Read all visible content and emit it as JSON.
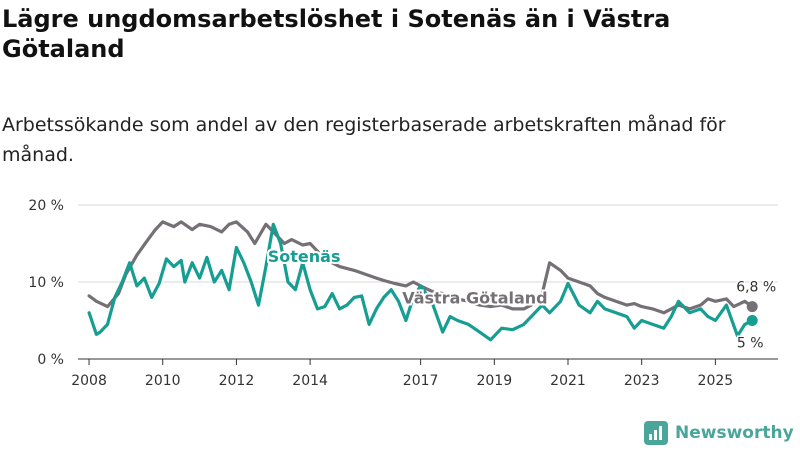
{
  "title": "Lägre ungdomsarbetslöshet i Sotenäs än i Västra Götaland",
  "subtitle": "Arbetssökande som andel av den registerbaserade arbetskraften månad för månad.",
  "brand": {
    "name": "Newsworthy",
    "icon": "newsworthy-logo-icon"
  },
  "colors": {
    "sotenas": "#179e93",
    "vastra": "#747075",
    "grid": "#d9d9d9",
    "axis": "#333333"
  },
  "chart_data": {
    "type": "line",
    "title": "Lägre ungdomsarbetslöshet i Sotenäs än i Västra Götaland",
    "xlabel": "",
    "ylabel": "",
    "xlim": [
      2007.7,
      2026.7
    ],
    "ylim": [
      0,
      20
    ],
    "y_ticks": [
      {
        "value": 0,
        "label": "0 %"
      },
      {
        "value": 10,
        "label": "10 %"
      },
      {
        "value": 20,
        "label": "20 %"
      }
    ],
    "x_ticks": [
      {
        "value": 2008,
        "label": "2008"
      },
      {
        "value": 2010,
        "label": "2010"
      },
      {
        "value": 2012,
        "label": "2012"
      },
      {
        "value": 2014,
        "label": "2014"
      },
      {
        "value": 2017,
        "label": "2017"
      },
      {
        "value": 2019,
        "label": "2019"
      },
      {
        "value": 2021,
        "label": "2021"
      },
      {
        "value": 2023,
        "label": "2023"
      },
      {
        "value": 2025,
        "label": "2025"
      }
    ],
    "grid": "horizontal",
    "series": [
      {
        "name": "Västra Götaland",
        "color": "#747075",
        "end_label": "6,8 %",
        "x": [
          2008.0,
          2008.2,
          2008.5,
          2008.8,
          2009.0,
          2009.3,
          2009.6,
          2009.8,
          2010.0,
          2010.3,
          2010.5,
          2010.8,
          2011.0,
          2011.3,
          2011.6,
          2011.8,
          2012.0,
          2012.3,
          2012.5,
          2012.8,
          2013.0,
          2013.3,
          2013.5,
          2013.8,
          2014.0,
          2014.3,
          2014.6,
          2014.8,
          2015.2,
          2015.5,
          2015.8,
          2016.0,
          2016.3,
          2016.6,
          2016.8,
          2017.0,
          2017.3,
          2017.6,
          2017.8,
          2018.0,
          2018.3,
          2018.6,
          2018.9,
          2019.2,
          2019.5,
          2019.8,
          2020.0,
          2020.3,
          2020.5,
          2020.8,
          2021.0,
          2021.3,
          2021.6,
          2021.8,
          2022.0,
          2022.3,
          2022.6,
          2022.8,
          2023.0,
          2023.3,
          2023.6,
          2023.8,
          2024.0,
          2024.3,
          2024.6,
          2024.8,
          2025.0,
          2025.3,
          2025.5,
          2025.8,
          2026.0
        ],
        "values": [
          8.2,
          7.5,
          6.8,
          8.5,
          11.0,
          13.5,
          15.5,
          16.8,
          17.8,
          17.2,
          17.8,
          16.8,
          17.5,
          17.2,
          16.5,
          17.5,
          17.8,
          16.5,
          15.0,
          17.5,
          16.5,
          15.0,
          15.5,
          14.8,
          15.0,
          13.5,
          12.5,
          12.0,
          11.5,
          11.0,
          10.5,
          10.2,
          9.8,
          9.5,
          10.0,
          9.5,
          8.8,
          8.5,
          8.2,
          7.8,
          7.5,
          7.0,
          6.8,
          7.0,
          6.5,
          6.5,
          7.0,
          8.5,
          12.5,
          11.5,
          10.5,
          10.0,
          9.5,
          8.5,
          8.0,
          7.5,
          7.0,
          7.2,
          6.8,
          6.5,
          6.0,
          6.5,
          7.0,
          6.5,
          7.0,
          7.8,
          7.5,
          7.8,
          6.8,
          7.5,
          6.8
        ]
      },
      {
        "name": "Sotenäs",
        "color": "#179e93",
        "end_label": "5 %",
        "x": [
          2008.0,
          2008.2,
          2008.3,
          2008.5,
          2008.7,
          2008.9,
          2009.1,
          2009.3,
          2009.5,
          2009.7,
          2009.9,
          2010.1,
          2010.3,
          2010.5,
          2010.6,
          2010.8,
          2011.0,
          2011.2,
          2011.4,
          2011.6,
          2011.8,
          2012.0,
          2012.2,
          2012.4,
          2012.6,
          2012.8,
          2013.0,
          2013.2,
          2013.4,
          2013.6,
          2013.8,
          2014.0,
          2014.2,
          2014.4,
          2014.6,
          2014.8,
          2015.0,
          2015.2,
          2015.4,
          2015.6,
          2015.8,
          2016.0,
          2016.2,
          2016.4,
          2016.6,
          2016.8,
          2017.0,
          2017.3,
          2017.6,
          2017.8,
          2018.0,
          2018.3,
          2018.6,
          2018.9,
          2019.2,
          2019.5,
          2019.8,
          2020.0,
          2020.3,
          2020.5,
          2020.8,
          2021.0,
          2021.3,
          2021.6,
          2021.8,
          2022.0,
          2022.3,
          2022.6,
          2022.8,
          2023.0,
          2023.3,
          2023.6,
          2023.8,
          2024.0,
          2024.3,
          2024.6,
          2024.8,
          2025.0,
          2025.3,
          2025.6,
          2025.8,
          2026.0
        ],
        "values": [
          6.0,
          3.2,
          3.5,
          4.5,
          8.0,
          10.0,
          12.5,
          9.5,
          10.5,
          8.0,
          9.8,
          13.0,
          12.0,
          12.8,
          10.0,
          12.5,
          10.5,
          13.2,
          10.0,
          11.5,
          9.0,
          14.5,
          12.5,
          10.0,
          7.0,
          12.0,
          17.5,
          15.0,
          10.0,
          9.0,
          12.5,
          9.0,
          6.5,
          6.8,
          8.5,
          6.5,
          7.0,
          8.0,
          8.2,
          4.5,
          6.5,
          8.0,
          9.0,
          7.5,
          5.0,
          8.0,
          9.5,
          7.5,
          3.5,
          5.5,
          5.0,
          4.5,
          3.5,
          2.5,
          4.0,
          3.8,
          4.5,
          5.5,
          7.0,
          6.0,
          7.5,
          9.8,
          7.0,
          6.0,
          7.5,
          6.5,
          6.0,
          5.5,
          4.0,
          5.0,
          4.5,
          4.0,
          5.5,
          7.5,
          6.0,
          6.5,
          5.5,
          5.0,
          7.0,
          3.0,
          4.5,
          5.0
        ]
      }
    ]
  }
}
